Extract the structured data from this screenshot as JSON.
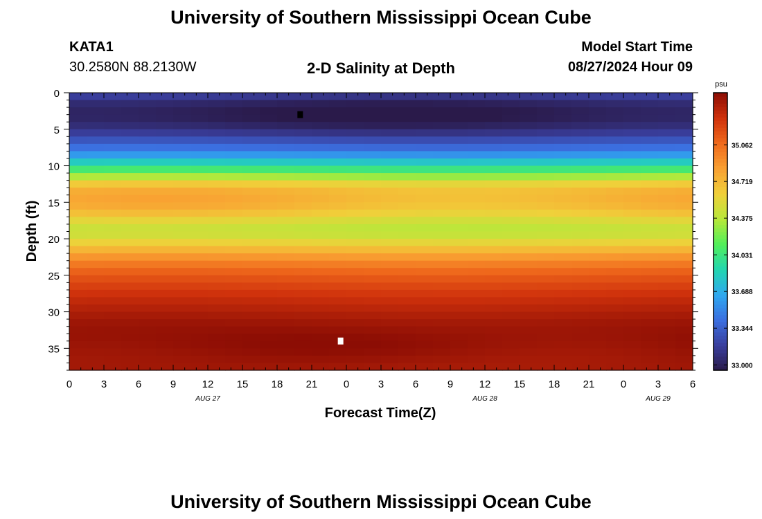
{
  "page": {
    "title": "University of Southern Mississippi Ocean Cube",
    "footer_title": "University of Southern Mississippi Ocean Cube",
    "station_id": "KATA1",
    "station_coords": "30.2580N  88.2130W",
    "plot_title": "2-D Salinity at Depth",
    "model_start_label": "Model Start Time",
    "model_start_value": "08/27/2024 Hour 09"
  },
  "chart_data": {
    "type": "heatmap",
    "title": "2-D Salinity at Depth",
    "xlabel": "Forecast Time(Z)",
    "ylabel": "Depth (ft)",
    "x_tick_labels": [
      "0",
      "3",
      "6",
      "9",
      "12",
      "15",
      "18",
      "21",
      "0",
      "3",
      "6",
      "9",
      "12",
      "15",
      "18",
      "21",
      "0",
      "3",
      "6"
    ],
    "x_hours": [
      0,
      3,
      6,
      9,
      12,
      15,
      18,
      21,
      24,
      27,
      30,
      33,
      36,
      39,
      42,
      45,
      48,
      51,
      54
    ],
    "date_labels": [
      {
        "label": "AUG 27",
        "hour": 12
      },
      {
        "label": "AUG 28",
        "hour": 36
      },
      {
        "label": "AUG 29",
        "hour": 51
      }
    ],
    "y_ticks": [
      0,
      5,
      10,
      15,
      20,
      25,
      30,
      35
    ],
    "ylim": [
      0,
      38
    ],
    "y_inverted": true,
    "colorbar": {
      "unit": "psu",
      "range": [
        32.95,
        35.55
      ],
      "tick_labels": [
        "35.062",
        "34.719",
        "34.375",
        "34.031",
        "33.688",
        "33.344",
        "33.000"
      ],
      "tick_values": [
        35.062,
        34.719,
        34.375,
        34.031,
        33.688,
        33.344,
        33.0
      ]
    },
    "depth_profile": {
      "depths_ft": [
        0,
        1,
        2,
        3,
        4,
        5,
        6,
        7,
        8,
        9,
        10,
        11,
        12,
        13,
        14,
        15,
        16,
        17,
        18,
        19,
        20,
        21,
        22,
        23,
        24,
        25,
        26,
        27,
        28,
        29,
        30,
        31,
        32,
        33,
        34,
        35,
        36,
        37,
        38
      ],
      "salinity_psu": [
        33.25,
        33.08,
        33.02,
        33.0,
        33.03,
        33.1,
        33.22,
        33.35,
        33.48,
        33.7,
        33.95,
        34.15,
        34.5,
        34.7,
        34.76,
        34.75,
        34.7,
        34.58,
        34.45,
        34.4,
        34.5,
        34.65,
        34.8,
        34.95,
        35.05,
        35.15,
        35.2,
        35.28,
        35.33,
        35.38,
        35.42,
        35.47,
        35.5,
        35.52,
        35.53,
        35.52,
        35.5,
        35.48,
        35.47
      ]
    },
    "markers": [
      {
        "name": "min-marker",
        "hour": 20,
        "depth_ft": 3,
        "color": "#000000"
      },
      {
        "name": "max-marker",
        "hour": 23.5,
        "depth_ft": 34,
        "color": "#ffffff"
      }
    ],
    "colors": {
      "stops": [
        "#2a1a4a",
        "#3a3f9e",
        "#3b6fe0",
        "#2fa8f0",
        "#22d6b0",
        "#52ef5a",
        "#b8e83a",
        "#f0d03a",
        "#f9a032",
        "#f06a1c",
        "#d0320c",
        "#8c0d04"
      ]
    }
  }
}
